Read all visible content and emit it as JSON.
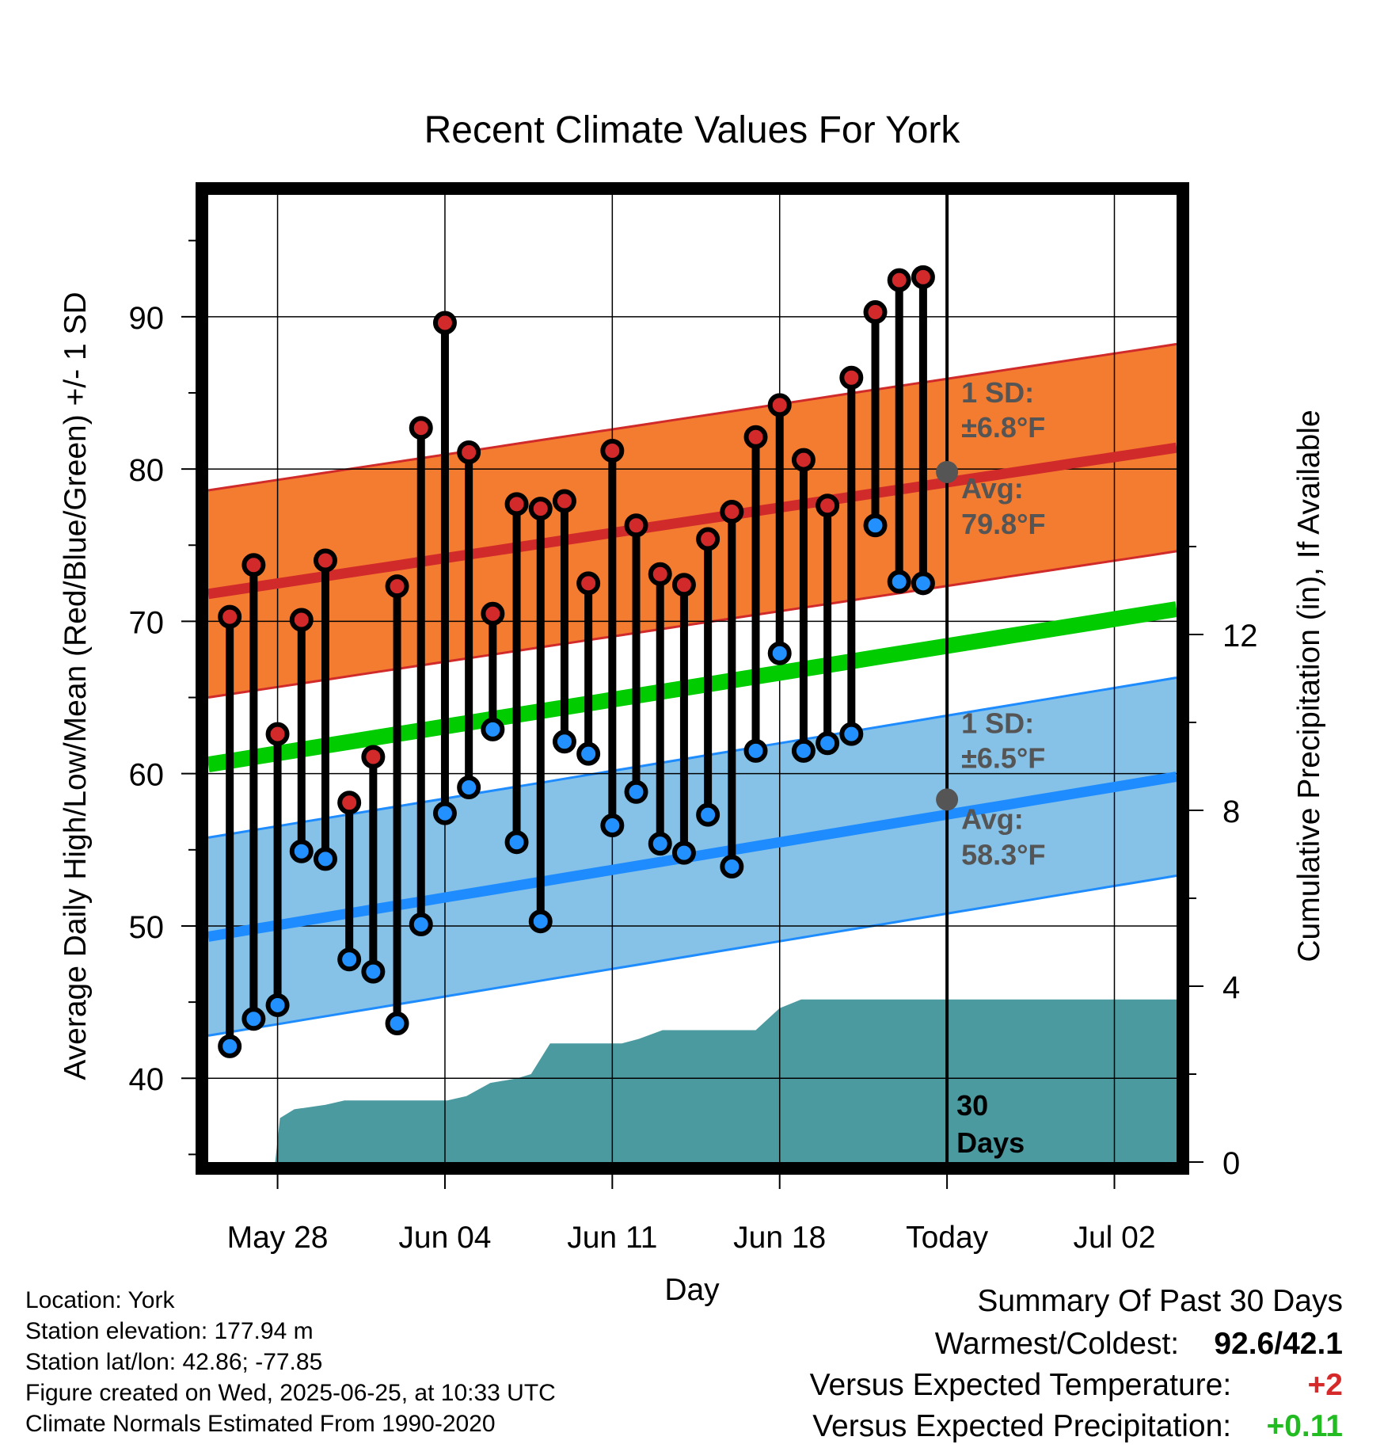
{
  "chart_data": {
    "type": "line",
    "title": "Recent Climate Values For York",
    "xlabel": "Day",
    "ylabel": "Average Daily High/Low/Mean (Red/Blue/Green) +/- 1 SD",
    "y2label": "Cumulative Precipitation (in), If Available",
    "ylim": [
      34.5,
      98
    ],
    "y2lim": [
      0,
      22
    ],
    "y_ticks": [
      "40",
      "50",
      "60",
      "70",
      "80",
      "90"
    ],
    "y2_ticks": [
      "0",
      "4",
      "8",
      "12"
    ],
    "x_range_days": [
      -30.9,
      9.6
    ],
    "x_ticks": [
      {
        "day": -28,
        "label": "May 28"
      },
      {
        "day": -21,
        "label": "Jun 04"
      },
      {
        "day": -14,
        "label": "Jun 11"
      },
      {
        "day": -7,
        "label": "Jun 18"
      },
      {
        "day": 0,
        "label": "Today"
      },
      {
        "day": 7,
        "label": "Jul 02"
      }
    ],
    "grid": true,
    "days": [
      -30,
      -29,
      -28,
      -27,
      -26,
      -25,
      -24,
      -23,
      -22,
      -21,
      -20,
      -19,
      -18,
      -17,
      -16,
      -15,
      -14,
      -13,
      -12,
      -11,
      -10,
      -9,
      -8,
      -7,
      -6,
      -5,
      -4,
      -3,
      -2,
      -1
    ],
    "highs": [
      70.3,
      73.7,
      62.6,
      70.1,
      74.0,
      58.1,
      61.1,
      72.3,
      82.7,
      89.6,
      81.1,
      70.5,
      77.7,
      77.4,
      77.9,
      72.5,
      81.2,
      76.3,
      73.1,
      72.4,
      75.4,
      77.2,
      82.1,
      84.2,
      80.6,
      77.6,
      86.0,
      90.3,
      92.4,
      92.6
    ],
    "lows": [
      42.1,
      43.9,
      44.8,
      54.9,
      54.4,
      47.8,
      47.0,
      43.6,
      50.1,
      57.4,
      59.1,
      62.9,
      55.5,
      50.3,
      62.1,
      61.3,
      56.6,
      58.8,
      55.4,
      54.8,
      57.3,
      53.9,
      61.5,
      67.9,
      61.5,
      62.0,
      62.6,
      76.3,
      72.6,
      72.5
    ],
    "normal_high": {
      "start": 71.8,
      "end": 81.4
    },
    "normal_low": {
      "start": 49.3,
      "end": 59.8
    },
    "normal_mean": {
      "start": 60.6,
      "end": 70.8
    },
    "high_sd": 6.8,
    "low_sd": 6.5,
    "precip_steps": [
      [
        -28.1,
        0
      ],
      [
        -27.9,
        1.0
      ],
      [
        -27.3,
        1.2
      ],
      [
        -26,
        1.3
      ],
      [
        -25.2,
        1.4
      ],
      [
        -22,
        1.4
      ],
      [
        -20.9,
        1.4
      ],
      [
        -20.1,
        1.5
      ],
      [
        -19.1,
        1.8
      ],
      [
        -18.0,
        1.9
      ],
      [
        -17.4,
        2.0
      ],
      [
        -16.6,
        2.7
      ],
      [
        -14,
        2.7
      ],
      [
        -13.6,
        2.7
      ],
      [
        -12.9,
        2.8
      ],
      [
        -11.9,
        3.0
      ],
      [
        -9,
        3.0
      ],
      [
        -8.0,
        3.0
      ],
      [
        -7.0,
        3.5
      ],
      [
        -6.1,
        3.7
      ],
      [
        0,
        3.7
      ],
      [
        9.6,
        3.7
      ]
    ],
    "annotations": {
      "high_sd_label": "1 SD:",
      "high_sd_value": "±6.8°F",
      "high_avg_label": "Avg:",
      "high_avg_value": "79.8°F",
      "high_avg_temp": 79.8,
      "low_sd_label": "1 SD:",
      "low_sd_value": "±6.5°F",
      "low_avg_label": "Avg:",
      "low_avg_value": "58.3°F",
      "low_avg_temp": 58.3,
      "days_count": "30",
      "days_word": "Days"
    },
    "colors": {
      "high_band": "#f47c30",
      "high_line": "#d12a2a",
      "low_band": "#86c2e8",
      "low_line": "#1e8cff",
      "mean_line": "#00cc00",
      "precip": "#4a9aa0",
      "high_dot": "#d22a2a",
      "low_dot": "#2291ff",
      "annotation": "#555555"
    }
  },
  "meta": {
    "location": "Location: York",
    "elevation": "Station elevation: 177.94 m",
    "latlon": "Station lat/lon: 42.86; -77.85",
    "created": "Figure created on Wed, 2025-06-25, at 10:33 UTC",
    "normals": "Climate Normals Estimated From 1990-2020"
  },
  "summary": {
    "title": "Summary Of Past 30 Days",
    "warmest_label": "Warmest/Coldest:",
    "warmest_value": "92.6/42.1",
    "temp_label": "Versus Expected Temperature:",
    "temp_value": "+2",
    "temp_color": "#d62a2a",
    "precip_label": "Versus Expected Precipitation:",
    "precip_value": "+0.11",
    "precip_color": "#22bb22"
  }
}
